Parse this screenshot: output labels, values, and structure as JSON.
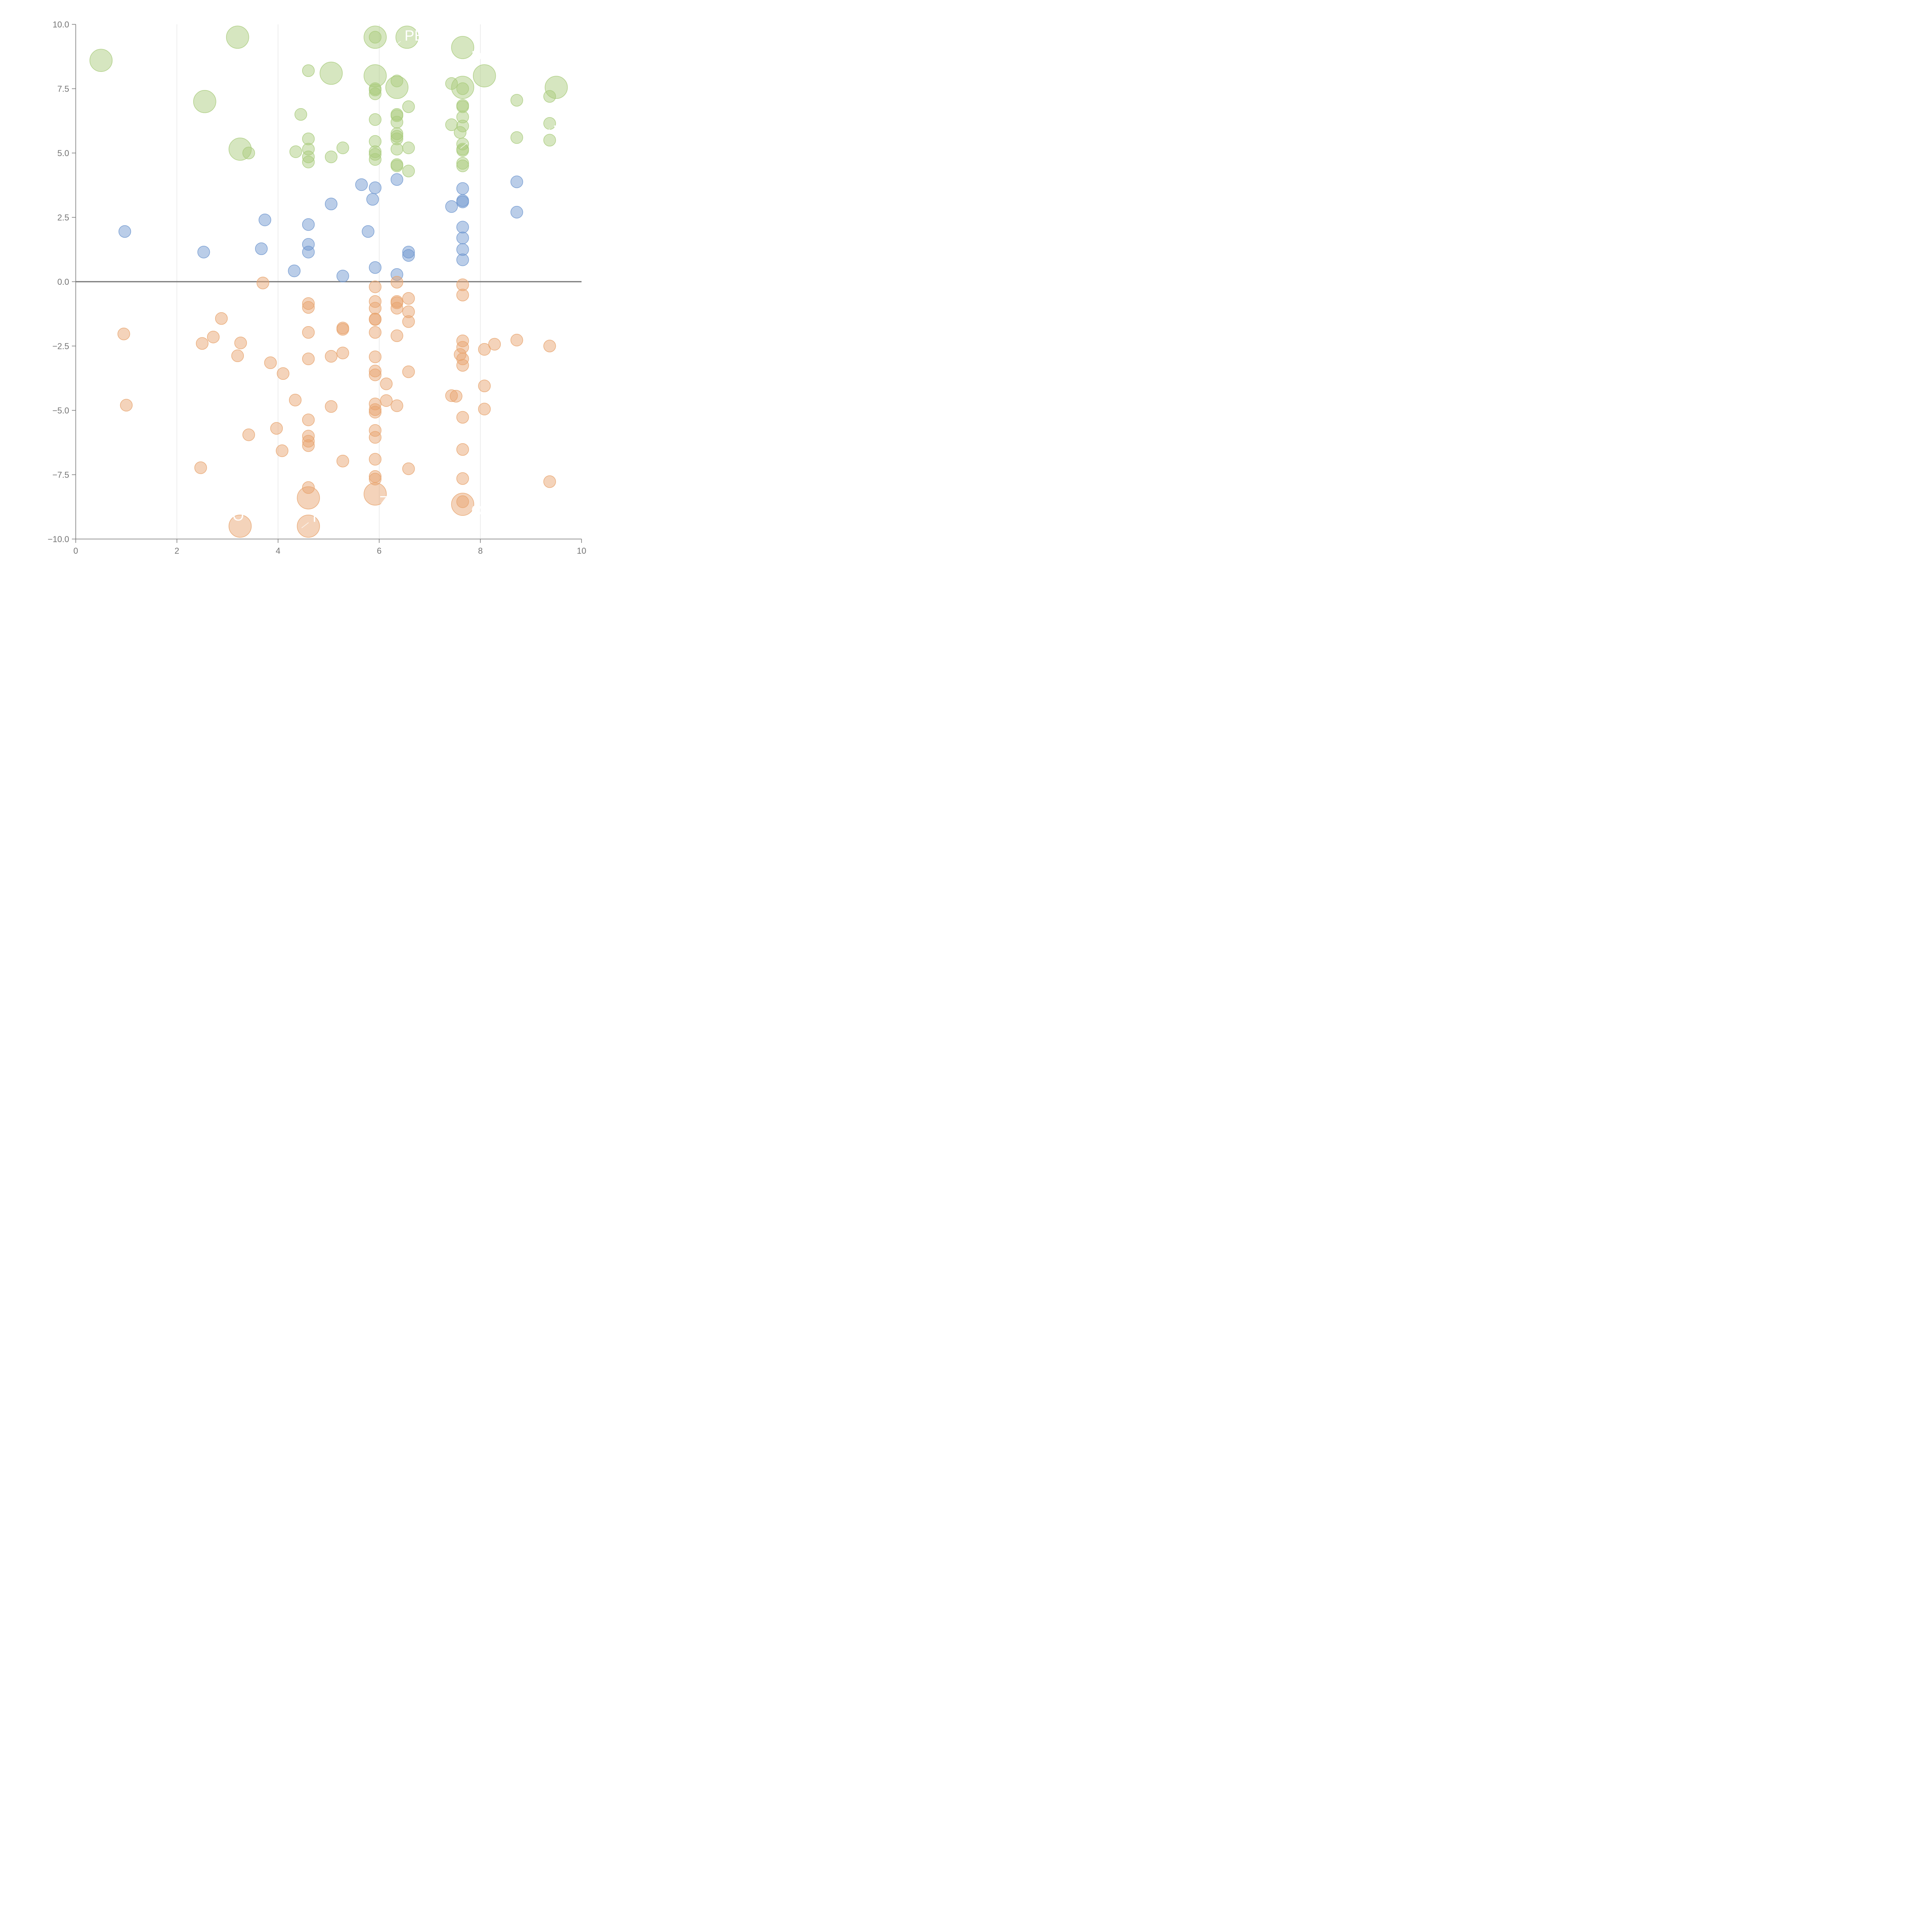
{
  "colors": {
    "top": "#a9cb7c",
    "mid": "#6f96cf",
    "bottom": "#e8a46f"
  },
  "annotations": [
    {
      "text": "PE",
      "x": 6.5,
      "y": 9.55
    },
    {
      "text": "D",
      "x": 7.82,
      "y": 8.75
    },
    {
      "text": "J",
      "x": 9.45,
      "y": 6.15
    },
    {
      "text": "I",
      "x": 7.82,
      "y": 5.6
    },
    {
      "text": "Z",
      "x": 6.0,
      "y": -8.55
    },
    {
      "text": "O",
      "x": 7.82,
      "y": -8.9
    },
    {
      "text": "O",
      "x": 3.1,
      "y": -9.1
    },
    {
      "text": "I",
      "x": 4.68,
      "y": -9.15
    }
  ],
  "chart_data": {
    "type": "scatter",
    "title": "",
    "xlabel": "",
    "ylabel": "",
    "xlim": [
      0,
      10
    ],
    "ylim": [
      -10,
      10
    ],
    "x_ticks": [
      "0",
      "2",
      "4",
      "6",
      "8",
      "10"
    ],
    "y_ticks": [
      "10.0",
      "7.5",
      "5.0",
      "2.5",
      "0.0",
      "−2.5",
      "−5.0",
      "−7.5",
      "−10.0"
    ],
    "grid": "vertical",
    "zero_line": true,
    "series": [
      {
        "color": "top",
        "points": [
          [
            0.5,
            8.6,
            2
          ],
          [
            3.2,
            9.5,
            2
          ],
          [
            2.55,
            7.0,
            2
          ],
          [
            3.25,
            5.15,
            2
          ],
          [
            3.42,
            5.0,
            1
          ],
          [
            4.6,
            8.2,
            1
          ],
          [
            4.45,
            6.5,
            1
          ],
          [
            4.6,
            5.55,
            1
          ],
          [
            4.35,
            5.05,
            1
          ],
          [
            4.6,
            5.15,
            1
          ],
          [
            4.6,
            4.85,
            1
          ],
          [
            4.6,
            4.65,
            1
          ],
          [
            5.05,
            8.1,
            2
          ],
          [
            5.05,
            4.85,
            1
          ],
          [
            5.28,
            5.2,
            1
          ],
          [
            5.92,
            9.5,
            2
          ],
          [
            5.92,
            9.5,
            1
          ],
          [
            5.92,
            8.0,
            2
          ],
          [
            5.92,
            7.5,
            1
          ],
          [
            5.92,
            7.45,
            1
          ],
          [
            5.92,
            7.3,
            1
          ],
          [
            5.92,
            6.3,
            1
          ],
          [
            5.92,
            5.45,
            1
          ],
          [
            5.92,
            5.05,
            1
          ],
          [
            5.92,
            4.95,
            1
          ],
          [
            5.92,
            4.75,
            1
          ],
          [
            6.55,
            9.5,
            2
          ],
          [
            6.35,
            7.55,
            2
          ],
          [
            6.35,
            7.8,
            1
          ],
          [
            6.58,
            6.8,
            1
          ],
          [
            6.35,
            6.5,
            1
          ],
          [
            6.35,
            6.45,
            1
          ],
          [
            6.35,
            6.2,
            1
          ],
          [
            6.35,
            5.75,
            1
          ],
          [
            6.35,
            5.65,
            1
          ],
          [
            6.35,
            5.55,
            1
          ],
          [
            6.35,
            5.15,
            1
          ],
          [
            6.58,
            5.2,
            1
          ],
          [
            6.35,
            4.55,
            1
          ],
          [
            6.35,
            4.5,
            1
          ],
          [
            6.58,
            4.3,
            1
          ],
          [
            7.65,
            9.1,
            2
          ],
          [
            7.65,
            7.55,
            2
          ],
          [
            7.65,
            7.5,
            1
          ],
          [
            7.43,
            7.7,
            1
          ],
          [
            7.65,
            6.85,
            1
          ],
          [
            7.65,
            6.8,
            1
          ],
          [
            7.65,
            6.4,
            1
          ],
          [
            7.43,
            6.1,
            1
          ],
          [
            7.65,
            6.05,
            1
          ],
          [
            7.6,
            5.8,
            1
          ],
          [
            7.65,
            5.35,
            1
          ],
          [
            7.65,
            5.15,
            1
          ],
          [
            7.65,
            5.1,
            1
          ],
          [
            7.65,
            4.6,
            1
          ],
          [
            7.65,
            4.5,
            1
          ],
          [
            8.08,
            8.0,
            2
          ],
          [
            8.72,
            7.05,
            1
          ],
          [
            8.72,
            5.6,
            1
          ],
          [
            9.5,
            7.55,
            2
          ],
          [
            9.37,
            7.2,
            1
          ],
          [
            9.37,
            6.15,
            1
          ],
          [
            9.37,
            5.5,
            1
          ]
        ]
      },
      {
        "color": "mid",
        "points": [
          [
            0.97,
            1.95,
            1
          ],
          [
            2.53,
            1.15,
            1
          ],
          [
            3.67,
            1.28,
            1
          ],
          [
            3.74,
            2.4,
            1
          ],
          [
            4.32,
            0.42,
            1
          ],
          [
            4.6,
            2.22,
            1
          ],
          [
            4.6,
            1.45,
            1
          ],
          [
            4.6,
            1.15,
            1
          ],
          [
            5.05,
            3.02,
            1
          ],
          [
            5.28,
            0.22,
            1
          ],
          [
            5.65,
            3.77,
            1
          ],
          [
            5.78,
            1.95,
            1
          ],
          [
            5.87,
            3.2,
            1
          ],
          [
            5.92,
            3.65,
            1
          ],
          [
            5.92,
            0.55,
            1
          ],
          [
            6.35,
            3.97,
            1
          ],
          [
            6.35,
            0.28,
            1
          ],
          [
            6.58,
            1.15,
            1
          ],
          [
            6.58,
            1.02,
            1
          ],
          [
            7.43,
            2.92,
            1
          ],
          [
            7.65,
            3.62,
            1
          ],
          [
            7.65,
            3.15,
            1
          ],
          [
            7.65,
            3.1,
            1
          ],
          [
            7.65,
            2.12,
            1
          ],
          [
            7.65,
            1.7,
            1
          ],
          [
            7.65,
            1.25,
            1
          ],
          [
            7.65,
            0.85,
            1
          ],
          [
            8.72,
            3.88,
            1
          ],
          [
            8.72,
            2.7,
            1
          ]
        ]
      },
      {
        "color": "bottom",
        "points": [
          [
            0.95,
            -2.03,
            1
          ],
          [
            1.0,
            -4.8,
            1
          ],
          [
            2.5,
            -2.4,
            1
          ],
          [
            2.47,
            -7.23,
            1
          ],
          [
            2.72,
            -2.15,
            1
          ],
          [
            2.88,
            -1.43,
            1
          ],
          [
            3.2,
            -2.88,
            1
          ],
          [
            3.26,
            -2.38,
            1
          ],
          [
            3.42,
            -5.95,
            1
          ],
          [
            3.25,
            -9.5,
            2
          ],
          [
            3.7,
            -0.05,
            1
          ],
          [
            3.85,
            -3.15,
            1
          ],
          [
            3.97,
            -5.7,
            1
          ],
          [
            4.08,
            -6.57,
            1
          ],
          [
            4.1,
            -3.57,
            1
          ],
          [
            4.34,
            -4.6,
            1
          ],
          [
            4.6,
            -0.85,
            1
          ],
          [
            4.6,
            -1.0,
            1
          ],
          [
            4.6,
            -1.97,
            1
          ],
          [
            4.6,
            -3.0,
            1
          ],
          [
            4.6,
            -5.37,
            1
          ],
          [
            4.6,
            -6.0,
            1
          ],
          [
            4.6,
            -6.2,
            1
          ],
          [
            4.6,
            -6.37,
            1
          ],
          [
            4.6,
            -8.0,
            1
          ],
          [
            4.6,
            -8.4,
            2
          ],
          [
            4.6,
            -9.5,
            2
          ],
          [
            5.05,
            -2.9,
            1
          ],
          [
            5.05,
            -4.85,
            1
          ],
          [
            5.28,
            -1.8,
            1
          ],
          [
            5.28,
            -1.85,
            1
          ],
          [
            5.28,
            -2.77,
            1
          ],
          [
            5.28,
            -6.97,
            1
          ],
          [
            5.92,
            -0.2,
            1
          ],
          [
            5.92,
            -0.77,
            1
          ],
          [
            5.92,
            -1.03,
            1
          ],
          [
            5.92,
            -1.45,
            1
          ],
          [
            5.92,
            -1.47,
            1
          ],
          [
            5.92,
            -1.97,
            1
          ],
          [
            5.92,
            -2.92,
            1
          ],
          [
            5.92,
            -3.47,
            1
          ],
          [
            5.92,
            -3.62,
            1
          ],
          [
            5.92,
            -4.75,
            1
          ],
          [
            5.92,
            -4.97,
            1
          ],
          [
            5.92,
            -5.07,
            1
          ],
          [
            5.92,
            -5.78,
            1
          ],
          [
            5.92,
            -6.05,
            1
          ],
          [
            5.92,
            -6.9,
            1
          ],
          [
            5.92,
            -7.57,
            1
          ],
          [
            5.92,
            -7.67,
            1
          ],
          [
            5.92,
            -8.25,
            2
          ],
          [
            6.14,
            -3.97,
            1
          ],
          [
            6.14,
            -4.62,
            1
          ],
          [
            6.35,
            -0.02,
            1
          ],
          [
            6.35,
            -0.77,
            1
          ],
          [
            6.35,
            -0.82,
            1
          ],
          [
            6.35,
            -1.03,
            1
          ],
          [
            6.35,
            -2.1,
            1
          ],
          [
            6.35,
            -4.82,
            1
          ],
          [
            6.58,
            -0.65,
            1
          ],
          [
            6.58,
            -1.17,
            1
          ],
          [
            6.58,
            -1.55,
            1
          ],
          [
            6.58,
            -3.5,
            1
          ],
          [
            6.58,
            -7.27,
            1
          ],
          [
            7.43,
            -4.43,
            1
          ],
          [
            7.52,
            -4.45,
            1
          ],
          [
            7.65,
            -0.12,
            1
          ],
          [
            7.65,
            -0.52,
            1
          ],
          [
            7.65,
            -2.3,
            1
          ],
          [
            7.65,
            -2.55,
            1
          ],
          [
            7.6,
            -2.83,
            1
          ],
          [
            7.65,
            -3.0,
            1
          ],
          [
            7.65,
            -3.25,
            1
          ],
          [
            7.65,
            -5.27,
            1
          ],
          [
            7.65,
            -6.52,
            1
          ],
          [
            7.65,
            -7.65,
            1
          ],
          [
            7.65,
            -8.55,
            1
          ],
          [
            7.65,
            -8.65,
            2
          ],
          [
            8.08,
            -2.63,
            1
          ],
          [
            8.08,
            -4.05,
            1
          ],
          [
            8.08,
            -4.95,
            1
          ],
          [
            8.28,
            -2.43,
            1
          ],
          [
            8.72,
            -2.27,
            1
          ],
          [
            9.37,
            -2.5,
            1
          ],
          [
            9.37,
            -7.77,
            1
          ]
        ]
      }
    ]
  }
}
